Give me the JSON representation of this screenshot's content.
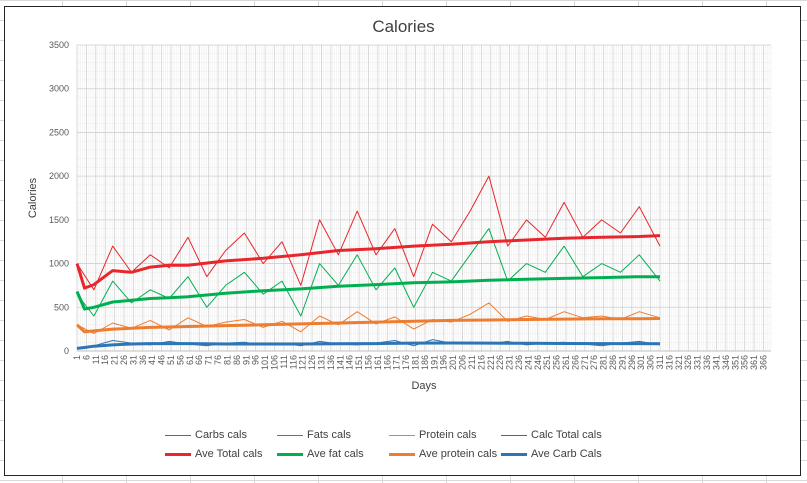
{
  "chart_data": {
    "type": "line",
    "title": "Calories",
    "xlabel": "Days",
    "ylabel": "Calories",
    "ylim": [
      0,
      3500
    ],
    "yticks": [
      0,
      500,
      1000,
      1500,
      2000,
      2500,
      3000,
      3500
    ],
    "xlim": [
      1,
      370
    ],
    "xticks": [
      "1",
      "6",
      "11",
      "16",
      "21",
      "26",
      "31",
      "36",
      "41",
      "46",
      "51",
      "56",
      "61",
      "66",
      "71",
      "76",
      "81",
      "86",
      "91",
      "96",
      "101",
      "106",
      "111",
      "116",
      "121",
      "126",
      "131",
      "136",
      "141",
      "146",
      "151",
      "156",
      "161",
      "166",
      "171",
      "176",
      "181",
      "186",
      "191",
      "196",
      "201",
      "206",
      "211",
      "216",
      "221",
      "226",
      "231",
      "236",
      "241",
      "246",
      "251",
      "256",
      "261",
      "266",
      "271",
      "276",
      "281",
      "286",
      "291",
      "296",
      "301",
      "306",
      "311",
      "316",
      "321",
      "326",
      "331",
      "336",
      "341",
      "346",
      "351",
      "356",
      "361",
      "366"
    ],
    "grid": true,
    "legend_position": "bottom",
    "series": [
      {
        "name": "Carbs cals",
        "color": "#2e75b6",
        "width": 1,
        "x": [
          1,
          10,
          20,
          30,
          40,
          50,
          60,
          70,
          80,
          90,
          100,
          110,
          120,
          130,
          140,
          150,
          160,
          170,
          180,
          190,
          200,
          210,
          220,
          230,
          240,
          250,
          260,
          270,
          280,
          290,
          300,
          311
        ],
        "values": [
          30,
          60,
          120,
          90,
          70,
          110,
          80,
          60,
          90,
          100,
          70,
          90,
          60,
          110,
          80,
          70,
          90,
          120,
          60,
          130,
          90,
          100,
          80,
          110,
          70,
          90,
          100,
          80,
          60,
          90,
          110,
          70
        ]
      },
      {
        "name": "Fats cals",
        "color": "#00b050",
        "width": 1,
        "x": [
          1,
          10,
          20,
          30,
          40,
          50,
          60,
          70,
          80,
          90,
          100,
          110,
          120,
          130,
          140,
          150,
          160,
          170,
          180,
          190,
          200,
          210,
          220,
          230,
          240,
          250,
          260,
          270,
          280,
          290,
          300,
          311
        ],
        "values": [
          650,
          400,
          800,
          550,
          700,
          600,
          850,
          500,
          750,
          900,
          650,
          800,
          400,
          1000,
          750,
          1100,
          700,
          950,
          500,
          900,
          800,
          1100,
          1400,
          800,
          1000,
          900,
          1200,
          850,
          1000,
          900,
          1100,
          800
        ]
      },
      {
        "name": "Protein cals",
        "color": "#ed7d31",
        "width": 1,
        "x": [
          1,
          10,
          20,
          30,
          40,
          50,
          60,
          70,
          80,
          90,
          100,
          110,
          120,
          130,
          140,
          150,
          160,
          170,
          180,
          190,
          200,
          210,
          220,
          230,
          240,
          250,
          260,
          270,
          280,
          290,
          300,
          311
        ],
        "values": [
          300,
          200,
          320,
          260,
          350,
          240,
          380,
          280,
          330,
          360,
          270,
          340,
          220,
          400,
          300,
          450,
          310,
          390,
          250,
          360,
          330,
          420,
          550,
          340,
          400,
          360,
          450,
          380,
          400,
          360,
          450,
          380
        ]
      },
      {
        "name": "Calc Total cals",
        "color": "#e8262b",
        "width": 1,
        "x": [
          1,
          10,
          20,
          30,
          40,
          50,
          60,
          70,
          80,
          90,
          100,
          110,
          120,
          130,
          140,
          150,
          160,
          170,
          180,
          190,
          200,
          210,
          220,
          230,
          240,
          250,
          260,
          270,
          280,
          290,
          300,
          311
        ],
        "values": [
          1000,
          700,
          1200,
          900,
          1100,
          950,
          1300,
          850,
          1150,
          1350,
          1000,
          1250,
          750,
          1500,
          1100,
          1600,
          1100,
          1400,
          850,
          1450,
          1250,
          1600,
          2000,
          1200,
          1500,
          1300,
          1700,
          1300,
          1500,
          1350,
          1650,
          1200
        ]
      },
      {
        "name": "Ave Total cals",
        "color": "#e8262b",
        "width": 3,
        "x": [
          1,
          5,
          10,
          20,
          30,
          40,
          50,
          60,
          80,
          100,
          120,
          140,
          160,
          180,
          200,
          220,
          240,
          260,
          280,
          300,
          311
        ],
        "values": [
          1000,
          720,
          760,
          920,
          900,
          960,
          980,
          980,
          1030,
          1060,
          1100,
          1150,
          1170,
          1200,
          1220,
          1250,
          1270,
          1290,
          1300,
          1310,
          1320
        ]
      },
      {
        "name": "Ave fat cals",
        "color": "#00b050",
        "width": 3,
        "x": [
          1,
          5,
          10,
          20,
          30,
          40,
          50,
          60,
          80,
          100,
          120,
          140,
          160,
          180,
          200,
          220,
          240,
          260,
          280,
          300,
          311
        ],
        "values": [
          680,
          480,
          500,
          560,
          580,
          600,
          610,
          620,
          660,
          690,
          710,
          740,
          760,
          780,
          790,
          810,
          820,
          830,
          840,
          850,
          850
        ]
      },
      {
        "name": "Ave protein cals",
        "color": "#ed7d31",
        "width": 3,
        "x": [
          1,
          5,
          10,
          20,
          30,
          40,
          50,
          60,
          80,
          100,
          120,
          140,
          160,
          180,
          200,
          220,
          240,
          260,
          280,
          300,
          311
        ],
        "values": [
          300,
          220,
          230,
          250,
          260,
          270,
          275,
          280,
          290,
          300,
          310,
          320,
          330,
          340,
          350,
          355,
          360,
          365,
          368,
          370,
          372
        ]
      },
      {
        "name": "Ave Carb Cals",
        "color": "#2e75b6",
        "width": 3,
        "x": [
          1,
          5,
          10,
          20,
          30,
          40,
          50,
          60,
          80,
          100,
          120,
          140,
          160,
          180,
          200,
          220,
          240,
          260,
          280,
          300,
          311
        ],
        "values": [
          30,
          40,
          55,
          70,
          80,
          85,
          85,
          85,
          80,
          80,
          80,
          82,
          85,
          90,
          92,
          90,
          88,
          86,
          85,
          85,
          84
        ]
      }
    ]
  }
}
